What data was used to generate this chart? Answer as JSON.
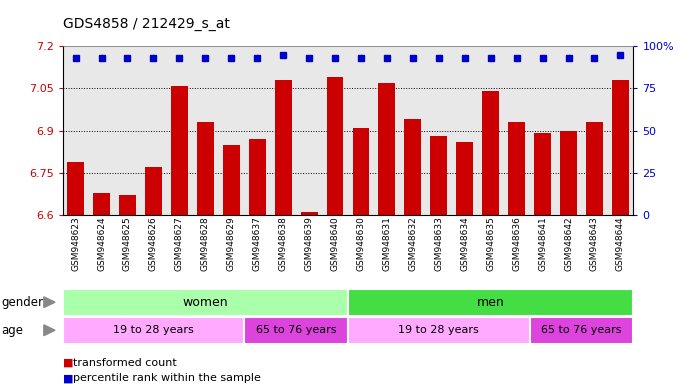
{
  "title": "GDS4858 / 212429_s_at",
  "samples": [
    "GSM948623",
    "GSM948624",
    "GSM948625",
    "GSM948626",
    "GSM948627",
    "GSM948628",
    "GSM948629",
    "GSM948637",
    "GSM948638",
    "GSM948639",
    "GSM948640",
    "GSM948630",
    "GSM948631",
    "GSM948632",
    "GSM948633",
    "GSM948634",
    "GSM948635",
    "GSM948636",
    "GSM948641",
    "GSM948642",
    "GSM948643",
    "GSM948644"
  ],
  "bar_values": [
    6.79,
    6.68,
    6.67,
    6.77,
    7.06,
    6.93,
    6.85,
    6.87,
    7.08,
    6.61,
    7.09,
    6.91,
    7.07,
    6.94,
    6.88,
    6.86,
    7.04,
    6.93,
    6.89,
    6.9,
    6.93,
    7.08
  ],
  "percentile_values": [
    93,
    93,
    93,
    93,
    93,
    93,
    93,
    93,
    95,
    93,
    93,
    93,
    93,
    93,
    93,
    93,
    93,
    93,
    93,
    93,
    93,
    95
  ],
  "ylim_left": [
    6.6,
    7.2
  ],
  "ylim_right": [
    0,
    100
  ],
  "yticks_left": [
    6.6,
    6.75,
    6.9,
    7.05,
    7.2
  ],
  "yticks_right": [
    0,
    25,
    50,
    75,
    100
  ],
  "bar_color": "#cc0000",
  "dot_color": "#0000cc",
  "bg_color": "#e8e8e8",
  "gender_women_color": "#aaffaa",
  "gender_men_color": "#44dd44",
  "age_young_color": "#ffaaff",
  "age_old_color": "#dd44dd",
  "gender_groups": [
    {
      "label": "women",
      "start": 0,
      "end": 11
    },
    {
      "label": "men",
      "start": 11,
      "end": 22
    }
  ],
  "age_groups": [
    {
      "label": "19 to 28 years",
      "start": 0,
      "end": 7
    },
    {
      "label": "65 to 76 years",
      "start": 7,
      "end": 11
    },
    {
      "label": "19 to 28 years",
      "start": 11,
      "end": 18
    },
    {
      "label": "65 to 76 years",
      "start": 18,
      "end": 22
    }
  ],
  "grid_yticks": [
    6.75,
    6.9,
    7.05
  ],
  "legend_items": [
    {
      "color": "#cc0000",
      "label": "transformed count"
    },
    {
      "color": "#0000cc",
      "label": "percentile rank within the sample"
    }
  ]
}
